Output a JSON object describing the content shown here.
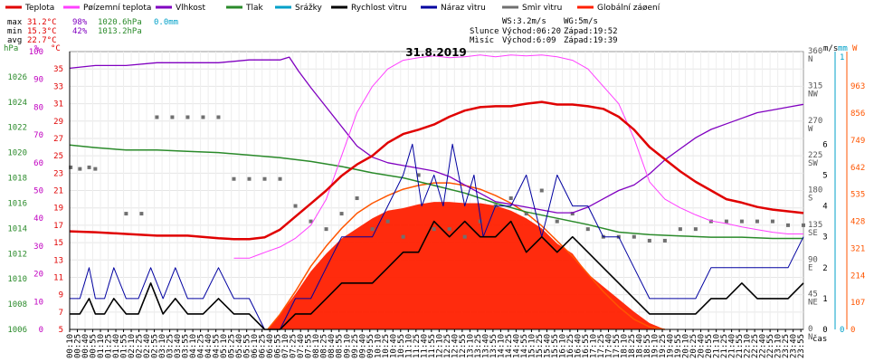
{
  "legend": [
    {
      "label": "Teplota",
      "color": "#e00000"
    },
    {
      "label": "Pøízemní teplota",
      "color": "#ff40ff"
    },
    {
      "label": "Vlhkost",
      "color": "#8000c0"
    },
    {
      "label": "Tlak",
      "color": "#2a8a2a"
    },
    {
      "label": "Srážky",
      "color": "#00a0c8"
    },
    {
      "label": "Rychlost vìtru",
      "color": "#000000"
    },
    {
      "label": "Náraz vìtru",
      "color": "#0000a0"
    },
    {
      "label": "Smìr vìtru",
      "color": "#707070"
    },
    {
      "label": "Globální záøení",
      "color": "#ff2000"
    }
  ],
  "stats": {
    "max": {
      "label": "max",
      "temp": "31.2°C",
      "hum": "98%",
      "press": "1020.6hPa",
      "rain": "0.0mm"
    },
    "min": {
      "label": "min",
      "temp": "15.3°C",
      "hum": "42%",
      "press": "1013.2hPa"
    },
    "avg": {
      "label": "avg",
      "temp": "22.7°C"
    }
  },
  "info": {
    "wind": "WS:3.2m/s",
    "gust": "WG:5m/s",
    "sun_label": "Slunce",
    "sun_rise": "Východ:06:20",
    "sun_set": "Západ:19:52",
    "moon_label": "Mìsíc",
    "moon_rise": "Východ:6:09",
    "moon_set": "Západ:19:39"
  },
  "colors": {
    "temp": "#e00000",
    "ground": "#ff40ff",
    "hum": "#8000c0",
    "press": "#2a8a2a",
    "rain": "#00a0c8",
    "speed": "#000000",
    "gust": "#0000a0",
    "dir": "#707070",
    "solar": "#ff2000",
    "solar_line": "#ff5500",
    "pressure_axis": "#2a8a2a",
    "humidity_axis": "#c000c0",
    "temp_axis": "#e00000",
    "wind_axis": "#000000",
    "rain_axis": "#00a0c8",
    "solar_axis": "#ff5500"
  },
  "chart_data": {
    "type": "line",
    "title": "31.8.2019",
    "xlabel": "čas",
    "x_ticks": [
      "00:10",
      "00:25",
      "00:40",
      "00:55",
      "01:10",
      "01:25",
      "01:40",
      "01:55",
      "02:10",
      "02:25",
      "02:40",
      "02:55",
      "03:10",
      "03:25",
      "03:40",
      "03:55",
      "04:10",
      "04:25",
      "04:40",
      "04:55",
      "05:10",
      "05:25",
      "05:40",
      "05:55",
      "06:10",
      "06:25",
      "06:40",
      "06:55",
      "07:10",
      "07:25",
      "07:40",
      "07:55",
      "08:10",
      "08:25",
      "08:40",
      "08:55",
      "09:10",
      "09:25",
      "09:40",
      "09:55",
      "10:10",
      "10:25",
      "10:40",
      "10:55",
      "11:10",
      "11:25",
      "11:40",
      "11:55",
      "12:10",
      "12:25",
      "12:40",
      "12:55",
      "13:10",
      "13:25",
      "13:40",
      "13:55",
      "14:10",
      "14:25",
      "14:40",
      "14:55",
      "15:10",
      "15:25",
      "15:40",
      "15:55",
      "16:10",
      "16:25",
      "16:40",
      "16:55",
      "17:10",
      "17:25",
      "17:40",
      "17:55",
      "18:10",
      "18:25",
      "18:40",
      "18:55",
      "19:10",
      "19:25",
      "19:40",
      "19:55",
      "20:10",
      "20:25",
      "20:40",
      "20:55",
      "21:10",
      "21:25",
      "21:40",
      "21:55",
      "22:10",
      "22:25",
      "22:40",
      "22:55",
      "23:10",
      "23:25",
      "23:40",
      "23:55"
    ],
    "x_range_hours": [
      0.1667,
      24.0
    ],
    "axes": {
      "pressure": {
        "label": "hPa",
        "range": [
          1006,
          1028
        ],
        "ticks": [
          1006,
          1008,
          1010,
          1012,
          1014,
          1016,
          1018,
          1020,
          1022,
          1024,
          1026
        ]
      },
      "humidity": {
        "label": "%",
        "range": [
          0,
          100
        ],
        "ticks": [
          0,
          10,
          20,
          30,
          40,
          50,
          60,
          70,
          80,
          90,
          100
        ]
      },
      "temperature": {
        "label": "°C",
        "range": [
          5,
          37
        ],
        "ticks": [
          5,
          7,
          9,
          11,
          13,
          15,
          17,
          19,
          21,
          23,
          25,
          27,
          29,
          31,
          33,
          35
        ]
      },
      "wind_direction": {
        "label": "m/s",
        "range": [
          0,
          360
        ],
        "ticks": [
          0,
          45,
          90,
          135,
          180,
          225,
          270,
          315,
          360
        ],
        "tick_labels": [
          "N",
          "NE",
          "E",
          "SE",
          "S",
          "SW",
          "W",
          "NW",
          "N"
        ]
      },
      "wind_speed": {
        "label": "m/s",
        "range": [
          0,
          9
        ],
        "ticks": [
          0,
          1,
          2,
          3,
          4,
          5,
          6
        ]
      },
      "rain": {
        "label": "mm",
        "range": [
          0,
          1
        ],
        "ticks": [
          0,
          1
        ]
      },
      "solar": {
        "label": "W",
        "range": [
          0,
          1100
        ],
        "ticks": [
          0,
          107,
          214,
          321,
          428,
          535,
          642,
          749,
          856,
          963
        ]
      }
    },
    "series": [
      {
        "name": "Teplota",
        "axis": "temperature",
        "x": [
          0.17,
          1,
          2,
          3,
          4,
          5,
          5.5,
          6,
          6.5,
          7,
          7.5,
          8,
          8.5,
          9,
          9.5,
          10,
          10.5,
          11,
          11.5,
          12,
          12.5,
          13,
          13.5,
          14,
          14.5,
          15,
          15.5,
          16,
          16.5,
          17,
          17.5,
          18,
          18.5,
          19,
          19.5,
          20,
          20.5,
          21,
          21.5,
          22,
          22.5,
          23,
          23.5,
          24
        ],
        "y": [
          16.3,
          16.2,
          16.0,
          15.8,
          15.8,
          15.5,
          15.4,
          15.4,
          15.6,
          16.5,
          18.0,
          19.5,
          21.0,
          22.7,
          24.0,
          25.0,
          26.5,
          27.5,
          28.0,
          28.6,
          29.5,
          30.2,
          30.6,
          30.7,
          30.7,
          31.0,
          31.2,
          30.9,
          30.9,
          30.7,
          30.4,
          29.5,
          28.0,
          26.0,
          24.6,
          23.2,
          22.0,
          21.0,
          20.0,
          19.6,
          19.1,
          18.8,
          18.6,
          18.4
        ]
      },
      {
        "name": "Pøízemní teplota",
        "axis": "temperature",
        "x": [
          5.5,
          6,
          6.3,
          6.6,
          7,
          7.5,
          8,
          8.5,
          9,
          9.5,
          10,
          10.5,
          11,
          11.5,
          12,
          12.5,
          13,
          13.5,
          14,
          14.5,
          15,
          15.5,
          16,
          16.5,
          17,
          17.5,
          18,
          18.5,
          19,
          19.5,
          20,
          20.5,
          21,
          21.5,
          22,
          22.5,
          23,
          23.5,
          24
        ],
        "y": [
          13.2,
          13.2,
          13.6,
          14.0,
          14.5,
          15.5,
          17.0,
          20.0,
          25.0,
          30.0,
          33.0,
          35.0,
          36.0,
          36.3,
          36.5,
          36.3,
          36.4,
          36.6,
          36.4,
          36.6,
          36.5,
          36.6,
          36.4,
          36.0,
          35.0,
          33.0,
          31.0,
          27.0,
          22.0,
          20.0,
          19.0,
          18.2,
          17.5,
          17.2,
          16.8,
          16.5,
          16.2,
          16.0,
          16.0
        ]
      },
      {
        "name": "Vlhkost",
        "axis": "humidity",
        "x": [
          0.17,
          1,
          2,
          3,
          4,
          5,
          6,
          7,
          7.3,
          7.6,
          8,
          8.5,
          9,
          9.5,
          10,
          10.5,
          11,
          11.5,
          12,
          12.5,
          13,
          13.5,
          14,
          14.5,
          15,
          15.5,
          16,
          16.5,
          17,
          17.5,
          18,
          18.5,
          19,
          19.5,
          20,
          20.5,
          21,
          21.5,
          22,
          22.5,
          23,
          23.5,
          24
        ],
        "y": [
          94,
          95,
          95,
          96,
          96,
          96,
          97,
          97,
          98,
          93,
          87,
          80,
          73,
          66,
          62,
          60,
          59,
          58,
          57,
          55,
          52,
          49,
          46,
          45,
          44,
          43,
          42,
          42,
          44,
          47,
          50,
          52,
          56,
          61,
          65,
          69,
          72,
          74,
          76,
          78,
          79,
          80,
          81
        ]
      },
      {
        "name": "Tlak",
        "axis": "pressure",
        "x": [
          0.17,
          1,
          2,
          3,
          4,
          5,
          6,
          7,
          8,
          9,
          10,
          11,
          12,
          13,
          14,
          15,
          16,
          17,
          18,
          19,
          20,
          21,
          22,
          23,
          24
        ],
        "y": [
          1020.6,
          1020.4,
          1020.2,
          1020.2,
          1020.1,
          1020.0,
          1019.8,
          1019.6,
          1019.3,
          1018.9,
          1018.4,
          1018.0,
          1017.4,
          1016.8,
          1016.0,
          1015.3,
          1014.8,
          1014.3,
          1013.7,
          1013.5,
          1013.4,
          1013.3,
          1013.3,
          1013.2,
          1013.2
        ]
      },
      {
        "name": "Globální záøení",
        "axis": "solar",
        "fill": true,
        "x": [
          6.6,
          7,
          7.5,
          8,
          8.5,
          9,
          9.5,
          10,
          10.5,
          11,
          11.5,
          12,
          12.5,
          13,
          13.5,
          14,
          14.5,
          15,
          15.5,
          16,
          16.5,
          17,
          17.5,
          18,
          18.5,
          19,
          19.5
        ],
        "y": [
          0,
          60,
          140,
          230,
          300,
          360,
          400,
          440,
          470,
          480,
          495,
          505,
          505,
          500,
          500,
          490,
          470,
          440,
          400,
          340,
          300,
          220,
          170,
          120,
          70,
          25,
          0
        ]
      },
      {
        "name": "Globální záøení max",
        "axis": "solar",
        "x": [
          6.6,
          7,
          7.5,
          8,
          8.5,
          9,
          9.5,
          10,
          10.5,
          11,
          11.5,
          12,
          12.5,
          13,
          13.5,
          14,
          14.5,
          15,
          15.5,
          16,
          16.5,
          17,
          17.5,
          18,
          18.5,
          19,
          19.5
        ],
        "y": [
          0,
          60,
          150,
          250,
          330,
          400,
          460,
          500,
          530,
          555,
          570,
          580,
          580,
          570,
          555,
          530,
          500,
          460,
          410,
          350,
          290,
          220,
          150,
          90,
          40,
          10,
          0
        ]
      },
      {
        "name": "Rychlost vìtru",
        "axis": "wind_speed",
        "x": [
          0.17,
          0.5,
          0.8,
          1.0,
          1.3,
          1.6,
          2.0,
          2.4,
          2.8,
          3.2,
          3.6,
          4.0,
          4.5,
          5.0,
          5.5,
          6.0,
          6.5,
          7.0,
          7.5,
          8.0,
          8.5,
          9.0,
          9.5,
          10,
          10.5,
          11,
          11.5,
          12,
          12.5,
          13,
          13.5,
          14,
          14.5,
          15,
          15.5,
          16,
          16.5,
          17,
          17.5,
          18,
          18.5,
          19,
          19.5,
          20,
          20.5,
          21,
          21.5,
          22,
          22.5,
          23,
          23.5,
          24
        ],
        "y": [
          0.5,
          0.5,
          1,
          0.5,
          0.5,
          1,
          0.5,
          0.5,
          1.5,
          0.5,
          1,
          0.5,
          0.5,
          1,
          0.5,
          0.5,
          0,
          0,
          0.5,
          0.5,
          1,
          1.5,
          1.5,
          1.5,
          2,
          2.5,
          2.5,
          3.5,
          3,
          3.5,
          3,
          3,
          3.5,
          2.5,
          3,
          2.5,
          3,
          2.5,
          2,
          1.5,
          1,
          0.5,
          0.5,
          0.5,
          0.5,
          1,
          1,
          1.5,
          1,
          1,
          1,
          1.5
        ]
      },
      {
        "name": "Náraz vìtru",
        "axis": "wind_speed",
        "x": [
          0.17,
          0.5,
          0.8,
          1.0,
          1.3,
          1.6,
          2.0,
          2.4,
          2.8,
          3.2,
          3.6,
          4.0,
          4.5,
          5.0,
          5.5,
          6.0,
          6.5,
          7.0,
          7.5,
          8.0,
          8.5,
          9.0,
          9.5,
          10,
          10.5,
          11,
          11.3,
          11.6,
          12,
          12.3,
          12.6,
          13,
          13.3,
          13.6,
          14,
          14.5,
          15,
          15.5,
          16,
          16.5,
          17,
          17.5,
          18,
          18.5,
          19,
          19.5,
          20,
          20.5,
          21,
          21.5,
          22,
          22.5,
          23,
          23.5,
          24
        ],
        "y": [
          1,
          1,
          2,
          1,
          1,
          2,
          1,
          1,
          2,
          1,
          2,
          1,
          1,
          2,
          1,
          1,
          0,
          0,
          1,
          1,
          2,
          3,
          3,
          3,
          4,
          5,
          6,
          4,
          5,
          4,
          6,
          4,
          5,
          3,
          4,
          4,
          5,
          3,
          5,
          4,
          4,
          3,
          3,
          2,
          1,
          1,
          1,
          1,
          2,
          2,
          2,
          2,
          2,
          2,
          3
        ]
      },
      {
        "name": "Smìr vìtru",
        "axis": "wind_direction",
        "points": true,
        "x": [
          0.2,
          0.5,
          0.8,
          1.0,
          2.0,
          2.5,
          3.0,
          3.5,
          4.0,
          4.5,
          5.0,
          5.5,
          6.0,
          6.5,
          7.0,
          7.5,
          8.0,
          8.5,
          9.0,
          9.5,
          10,
          10.5,
          11,
          11.5,
          12,
          12.5,
          13,
          13.5,
          14,
          14.5,
          15,
          15.5,
          16,
          16.5,
          17,
          17.5,
          18,
          18.5,
          19,
          19.5,
          20,
          20.5,
          21,
          21.5,
          22,
          22.5,
          23,
          23.5,
          24
        ],
        "y": [
          210,
          208,
          210,
          208,
          150,
          150,
          275,
          275,
          275,
          275,
          275,
          195,
          195,
          195,
          195,
          160,
          140,
          130,
          150,
          170,
          130,
          140,
          120,
          200,
          130,
          130,
          120,
          140,
          160,
          170,
          150,
          180,
          140,
          150,
          130,
          120,
          120,
          120,
          115,
          115,
          130,
          130,
          140,
          140,
          140,
          140,
          140,
          135,
          135
        ]
      }
    ]
  }
}
